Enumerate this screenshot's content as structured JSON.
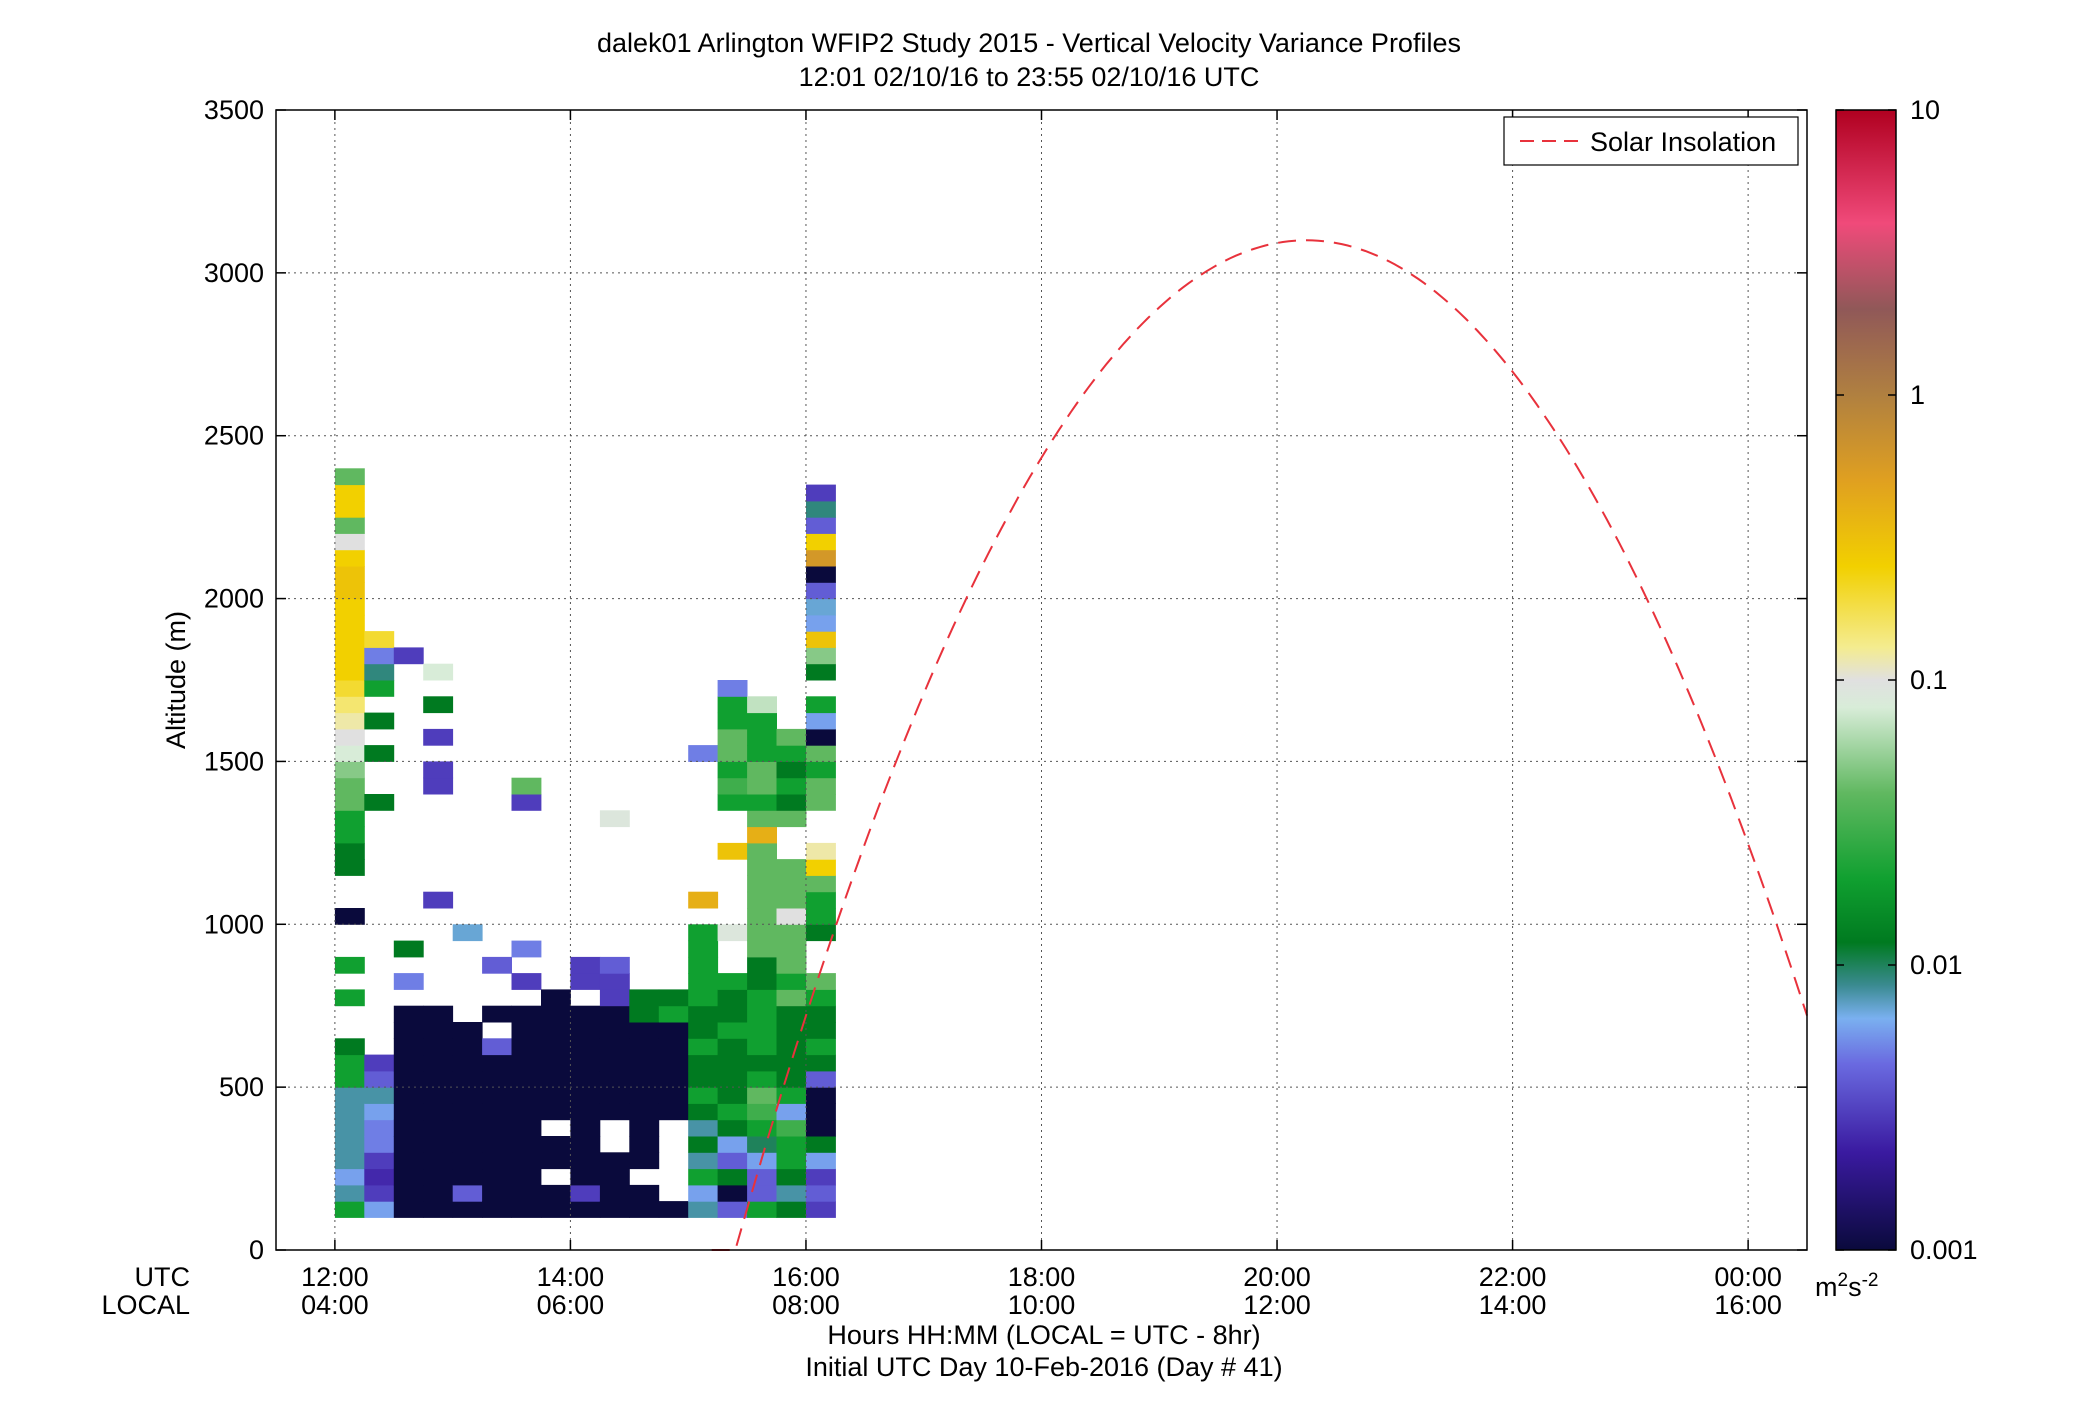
{
  "chart_data": {
    "type": "heatmap",
    "title_lines": [
      "dalek01 Arlington WFIP2 Study 2015 - Vertical Velocity Variance Profiles",
      "12:01 02/10/16 to 23:55 02/10/16  UTC"
    ],
    "ylabel": "Altitude (m)",
    "xlabel_lines": [
      "Hours HH:MM  (LOCAL = UTC - 8hr)",
      "Initial UTC Day 10-Feb-2016 (Day # 41)"
    ],
    "x_row_labels": [
      "UTC",
      "LOCAL"
    ],
    "x_ticks_utc": [
      "12:00",
      "14:00",
      "16:00",
      "18:00",
      "20:00",
      "22:00",
      "00:00"
    ],
    "x_ticks_local": [
      "04:00",
      "06:00",
      "08:00",
      "10:00",
      "12:00",
      "14:00",
      "16:00"
    ],
    "x_tick_hours": [
      12,
      14,
      16,
      18,
      20,
      22,
      24
    ],
    "xlim_hours": [
      11.5,
      24.5
    ],
    "y_ticks": [
      "0",
      "500",
      "1000",
      "1500",
      "2000",
      "2500",
      "3000",
      "3500"
    ],
    "y_tick_values": [
      0,
      500,
      1000,
      1500,
      2000,
      2500,
      3000,
      3500
    ],
    "ylim": [
      0,
      3500
    ],
    "grid": true,
    "legend": {
      "label": "Solar Insolation",
      "position": "top-right",
      "color": "#e8323c",
      "style": "dashed"
    },
    "colorbar": {
      "scale": "log",
      "range": [
        0.001,
        10
      ],
      "ticks": [
        "10",
        "1",
        "0.1",
        "0.01",
        "0.001"
      ],
      "tick_values": [
        10,
        1,
        0.1,
        0.01,
        0.001
      ],
      "units_base": "m",
      "units_sup1": "2",
      "units_mid": "s",
      "units_sup2": "-2",
      "stops": [
        {
          "v": 0.001,
          "color": "#0a0a3c"
        },
        {
          "v": 0.0022,
          "color": "#3a1aa0"
        },
        {
          "v": 0.0045,
          "color": "#6a6ae0"
        },
        {
          "v": 0.0065,
          "color": "#7ab0f0"
        },
        {
          "v": 0.0085,
          "color": "#3a8a90"
        },
        {
          "v": 0.012,
          "color": "#007a20"
        },
        {
          "v": 0.02,
          "color": "#10a030"
        },
        {
          "v": 0.04,
          "color": "#60b860"
        },
        {
          "v": 0.08,
          "color": "#d8ecd8"
        },
        {
          "v": 0.1,
          "color": "#e0e0e0"
        },
        {
          "v": 0.13,
          "color": "#f4ec90"
        },
        {
          "v": 0.25,
          "color": "#f2d000"
        },
        {
          "v": 0.5,
          "color": "#e0a020"
        },
        {
          "v": 1.0,
          "color": "#b08040"
        },
        {
          "v": 2.0,
          "color": "#905858"
        },
        {
          "v": 4.0,
          "color": "#f04a7a"
        },
        {
          "v": 10.0,
          "color": "#b00020"
        }
      ]
    },
    "solar_curve": {
      "start_hour": 15.2,
      "peak_hour": 20.25,
      "peak_alt": 3100,
      "end_hour": 24.9
    },
    "grid_cells": {
      "hour_step": 0.25,
      "alt_step": 50,
      "alt_min": 100
    },
    "columns": [
      {
        "h": 12.0,
        "v": [
          0.02,
          0.008,
          0.006,
          0.008,
          0.008,
          0.008,
          0.008,
          0.008,
          0.02,
          0.02,
          0.012,
          null,
          null,
          0.02,
          null,
          0.02,
          null,
          null,
          0.001,
          null,
          null,
          0.012,
          0.012,
          0.02,
          0.02,
          0.04,
          0.04,
          0.05,
          0.08,
          0.1,
          0.12,
          0.15,
          0.2,
          0.25,
          0.25,
          0.25,
          0.25,
          0.25,
          0.3,
          0.3,
          0.25,
          0.1,
          0.04,
          0.25,
          0.25,
          0.04
        ]
      },
      {
        "h": 12.25,
        "v": [
          0.006,
          0.003,
          0.0025,
          0.003,
          0.005,
          0.005,
          0.006,
          0.008,
          0.004,
          0.003,
          null,
          null,
          null,
          null,
          null,
          null,
          null,
          null,
          null,
          null,
          null,
          null,
          null,
          null,
          null,
          0.012,
          null,
          null,
          0.012,
          null,
          0.012,
          null,
          0.02,
          0.009,
          0.005,
          0.2
        ]
      },
      {
        "h": 12.5,
        "v": [
          0.001,
          0.001,
          0.001,
          0.001,
          0.001,
          0.001,
          0.001,
          0.001,
          0.001,
          0.001,
          0.001,
          0.001,
          0.001,
          null,
          0.005,
          null,
          0.012,
          null,
          null,
          null,
          null,
          null,
          null,
          null,
          null,
          null,
          null,
          null,
          null,
          null,
          null,
          null,
          null,
          null,
          0.003
        ]
      },
      {
        "h": 12.75,
        "v": [
          0.001,
          0.001,
          0.001,
          0.001,
          0.001,
          0.001,
          0.001,
          0.001,
          0.001,
          0.001,
          0.001,
          0.001,
          0.001,
          null,
          null,
          null,
          null,
          null,
          null,
          0.003,
          null,
          null,
          null,
          null,
          null,
          null,
          0.003,
          0.003,
          null,
          0.003,
          null,
          0.012,
          null,
          0.08
        ]
      },
      {
        "h": 13.0,
        "v": [
          0.001,
          0.004,
          0.001,
          0.001,
          0.001,
          0.001,
          0.001,
          0.001,
          0.001,
          0.001,
          0.001,
          0.001,
          null,
          null,
          null,
          null,
          null,
          0.007
        ]
      },
      {
        "h": 13.25,
        "v": [
          0.001,
          0.001,
          0.001,
          0.001,
          0.001,
          0.001,
          0.001,
          0.001,
          0.001,
          0.001,
          0.004,
          null,
          0.001,
          null,
          null,
          0.004
        ]
      },
      {
        "h": 13.5,
        "v": [
          0.001,
          0.001,
          0.001,
          0.001,
          0.001,
          0.001,
          0.001,
          0.001,
          0.001,
          0.001,
          0.001,
          0.001,
          0.001,
          null,
          0.003,
          null,
          0.005,
          null,
          null,
          null,
          null,
          null,
          null,
          null,
          null,
          0.003,
          0.04
        ]
      },
      {
        "h": 13.75,
        "v": [
          0.001,
          0.001,
          null,
          0.001,
          0.001,
          null,
          0.001,
          0.001,
          0.001,
          0.001,
          0.001,
          0.001,
          0.001,
          0.001
        ]
      },
      {
        "h": 14.0,
        "v": [
          0.001,
          0.003,
          0.001,
          0.001,
          0.001,
          0.001,
          0.001,
          0.001,
          0.001,
          0.001,
          0.001,
          0.001,
          0.001,
          null,
          0.003,
          0.003
        ]
      },
      {
        "h": 14.25,
        "v": [
          0.001,
          0.001,
          0.001,
          0.001,
          null,
          null,
          0.001,
          0.001,
          0.001,
          0.001,
          0.001,
          0.001,
          0.001,
          0.003,
          0.003,
          0.004,
          null,
          null,
          null,
          null,
          null,
          null,
          null,
          null,
          0.09
        ]
      },
      {
        "h": 14.5,
        "v": [
          0.001,
          0.001,
          null,
          0.001,
          0.001,
          0.001,
          0.001,
          0.001,
          0.001,
          0.001,
          0.001,
          0.001,
          0.012,
          0.012
        ]
      },
      {
        "h": 14.75,
        "v": [
          0.001,
          null,
          null,
          null,
          null,
          null,
          0.001,
          0.001,
          0.001,
          0.001,
          0.001,
          0.001,
          0.02,
          0.012
        ]
      },
      {
        "h": 15.0,
        "v": [
          0.008,
          0.006,
          0.02,
          0.008,
          0.012,
          0.008,
          0.012,
          0.02,
          0.012,
          0.012,
          0.02,
          0.012,
          0.012,
          0.02,
          0.02,
          0.02,
          0.02,
          0.02,
          null,
          0.4,
          null,
          null,
          null,
          null,
          null,
          null,
          null,
          null,
          0.005
        ]
      },
      {
        "h": 15.25,
        "v": [
          0.004,
          0.001,
          0.012,
          0.004,
          0.006,
          0.012,
          0.02,
          0.012,
          0.012,
          0.012,
          0.012,
          0.02,
          0.012,
          0.012,
          0.02,
          null,
          null,
          0.09,
          null,
          null,
          null,
          null,
          0.3,
          null,
          null,
          0.02,
          0.03,
          0.02,
          0.04,
          0.04,
          0.02,
          0.02,
          0.005
        ]
      },
      {
        "h": 15.5,
        "v": [
          0.02,
          0.004,
          0.004,
          0.006,
          0.01,
          0.02,
          0.03,
          0.04,
          0.02,
          0.012,
          0.02,
          0.02,
          0.02,
          0.02,
          0.012,
          0.012,
          0.04,
          0.04,
          0.04,
          0.04,
          0.04,
          0.04,
          0.04,
          0.4,
          0.04,
          0.02,
          0.04,
          0.04,
          0.02,
          0.02,
          0.02,
          0.07
        ]
      },
      {
        "h": 15.75,
        "v": [
          0.012,
          0.008,
          0.012,
          0.02,
          0.02,
          0.03,
          0.006,
          0.02,
          0.012,
          0.012,
          0.012,
          0.012,
          0.012,
          0.04,
          0.02,
          0.04,
          0.04,
          0.04,
          0.1,
          0.04,
          0.04,
          0.04,
          null,
          null,
          0.04,
          0.012,
          0.02,
          0.012,
          0.02,
          0.04
        ]
      },
      {
        "h": 16.0,
        "v": [
          0.003,
          0.004,
          0.003,
          0.006,
          0.012,
          0.001,
          0.001,
          0.001,
          0.004,
          0.012,
          0.02,
          0.012,
          0.012,
          0.02,
          0.04,
          null,
          null,
          0.012,
          0.02,
          0.02,
          0.04,
          0.25,
          0.12,
          null,
          null,
          0.04,
          0.04,
          0.02,
          0.04,
          0.001,
          0.006,
          0.02,
          null,
          0.012,
          0.05,
          0.3,
          0.006,
          0.007,
          0.004,
          0.001,
          0.6,
          0.25,
          0.004,
          0.009,
          0.003
        ]
      }
    ]
  }
}
